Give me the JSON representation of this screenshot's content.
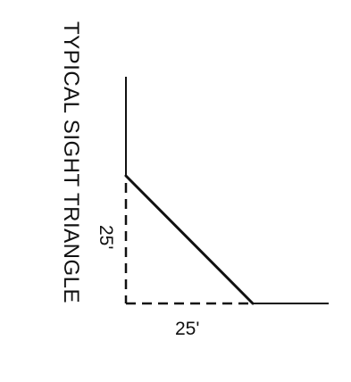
{
  "title": "TYPICAL SIGHT TRIANGLE",
  "dimensions": {
    "vertical_leg": "25'",
    "horizontal_leg": "25'"
  }
}
